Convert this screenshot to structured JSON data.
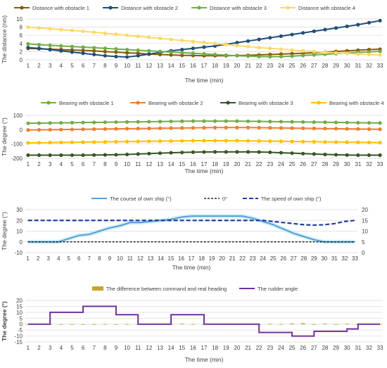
{
  "chart_data": [
    {
      "type": "line",
      "x": [
        1,
        2,
        3,
        4,
        5,
        6,
        7,
        8,
        9,
        10,
        11,
        12,
        13,
        14,
        15,
        16,
        17,
        18,
        19,
        20,
        21,
        22,
        23,
        24,
        25,
        26,
        27,
        28,
        29,
        30,
        31,
        32,
        33
      ],
      "xlabel": "The time (min)",
      "ylabel": "The distance (nm)",
      "ylim": [
        0,
        10
      ],
      "yticks": [
        0,
        2,
        4,
        6,
        8,
        10
      ],
      "grid": true,
      "legend": "top",
      "series": [
        {
          "name": "Distance with obstacle 1",
          "color": "#8B5A00",
          "values": [
            2.8,
            2.7,
            2.6,
            2.5,
            2.4,
            2.3,
            2.2,
            2.0,
            1.9,
            1.7,
            1.6,
            1.4,
            1.3,
            1.2,
            1.1,
            1.05,
            1.0,
            1.0,
            1.0,
            1.05,
            1.1,
            1.2,
            1.3,
            1.4,
            1.5,
            1.6,
            1.75,
            1.9,
            2.05,
            2.2,
            2.35,
            2.5,
            2.6
          ]
        },
        {
          "name": "Distance with obstacle 2",
          "color": "#1F4E79",
          "values": [
            3.0,
            2.8,
            2.5,
            2.2,
            1.9,
            1.6,
            1.3,
            1.0,
            0.8,
            0.7,
            1.0,
            1.4,
            1.8,
            2.2,
            2.5,
            2.8,
            3.1,
            3.4,
            3.8,
            4.2,
            4.6,
            5.0,
            5.4,
            5.8,
            6.2,
            6.6,
            7.0,
            7.4,
            7.8,
            8.2,
            8.6,
            9.1,
            9.6
          ]
        },
        {
          "name": "Distance with obstacle 3",
          "color": "#70AD47",
          "values": [
            3.9,
            3.7,
            3.55,
            3.4,
            3.25,
            3.1,
            2.95,
            2.8,
            2.65,
            2.5,
            2.35,
            2.2,
            2.05,
            1.9,
            1.75,
            1.6,
            1.45,
            1.3,
            1.15,
            1.0,
            0.9,
            0.8,
            0.75,
            0.8,
            0.9,
            1.05,
            1.2,
            1.35,
            1.5,
            1.65,
            1.8,
            1.95,
            2.1
          ]
        },
        {
          "name": "Distance with obstacle 4",
          "color": "#FFD966",
          "values": [
            8.0,
            7.8,
            7.6,
            7.4,
            7.2,
            7.0,
            6.75,
            6.5,
            6.25,
            6.0,
            5.75,
            5.5,
            5.25,
            5.0,
            4.75,
            4.5,
            4.25,
            4.0,
            3.75,
            3.5,
            3.25,
            3.0,
            2.8,
            2.6,
            2.4,
            2.2,
            2.0,
            1.85,
            1.7,
            1.55,
            1.4,
            1.3,
            1.2
          ]
        }
      ]
    },
    {
      "type": "line",
      "x": [
        1,
        2,
        3,
        4,
        5,
        6,
        7,
        8,
        9,
        10,
        11,
        12,
        13,
        14,
        15,
        16,
        17,
        18,
        19,
        20,
        21,
        22,
        23,
        24,
        25,
        26,
        27,
        28,
        29,
        30,
        31,
        32,
        33
      ],
      "xlabel": "The time (min)",
      "ylabel": "The degree (°)",
      "ylim": [
        -200,
        100
      ],
      "yticks": [
        -200,
        -100,
        0,
        100
      ],
      "grid": true,
      "legend": "top",
      "series": [
        {
          "name": "Bearing with obstacle 1",
          "color": "#70AD47",
          "values": [
            45,
            46,
            47,
            48,
            49,
            50,
            51,
            52,
            53,
            54,
            55,
            56,
            57,
            58,
            59,
            60,
            60,
            60,
            60,
            60,
            59,
            58,
            57,
            56,
            55,
            54,
            53,
            52,
            51,
            50,
            49,
            48,
            47
          ]
        },
        {
          "name": "Bearing with obstacle 2",
          "color": "#ED7D31",
          "values": [
            -2,
            -1,
            0,
            1,
            2,
            3,
            4,
            5,
            6,
            7,
            8,
            9,
            10,
            11,
            12,
            13,
            14,
            15,
            15,
            15,
            15,
            14,
            13,
            12,
            11,
            10,
            9,
            8,
            7,
            6,
            5,
            4,
            3
          ]
        },
        {
          "name": "Bearing with obstacle 3",
          "color": "#375623",
          "values": [
            -178,
            -178,
            -178,
            -178,
            -178,
            -178,
            -177,
            -176,
            -175,
            -173,
            -170,
            -167,
            -164,
            -161,
            -159,
            -157,
            -156,
            -155,
            -155,
            -155,
            -155,
            -156,
            -158,
            -161,
            -164,
            -167,
            -170,
            -173,
            -175,
            -177,
            -178,
            -178,
            -178
          ]
        },
        {
          "name": "Bearing with obstacle 4",
          "color": "#FFC000",
          "values": [
            -92,
            -91,
            -90,
            -89,
            -88,
            -87,
            -86,
            -85,
            -84,
            -83,
            -82,
            -81,
            -80,
            -79,
            -78,
            -77,
            -77,
            -77,
            -77,
            -77,
            -78,
            -79,
            -80,
            -81,
            -82,
            -83,
            -84,
            -85,
            -86,
            -87,
            -88,
            -89,
            -90
          ]
        }
      ]
    },
    {
      "type": "line",
      "x": [
        1,
        2,
        3,
        4,
        5,
        6,
        7,
        8,
        9,
        10,
        11,
        12,
        13,
        14,
        15,
        16,
        17,
        18,
        19,
        20,
        21,
        22,
        23,
        24,
        25,
        26,
        27,
        28,
        29,
        30,
        31,
        32,
        33
      ],
      "xlabel": "The time (min)",
      "ylabel": "The degree (°)",
      "ylim": [
        -10,
        30
      ],
      "yticks": [
        -10,
        0,
        10,
        20,
        30
      ],
      "y2lim": [
        0,
        20
      ],
      "y2ticks": [
        0,
        5,
        10,
        15,
        20
      ],
      "grid": true,
      "legend": "top",
      "series": [
        {
          "name": "The course of own ship (°)",
          "color": "#5B9BD5",
          "axis": "left",
          "values": [
            0,
            0,
            0,
            0,
            3,
            6,
            7,
            10,
            13,
            15,
            18,
            18,
            19,
            20,
            21,
            23,
            24,
            24,
            24,
            24,
            24,
            24,
            22,
            19,
            16,
            12,
            8,
            5,
            2,
            0,
            0,
            0,
            0
          ]
        },
        {
          "name": "0°",
          "color": "#000000",
          "axis": "left",
          "dash": "dotted",
          "values": [
            0,
            0,
            0,
            0,
            0,
            0,
            0,
            0,
            0,
            0,
            0,
            0,
            0,
            0,
            0,
            0,
            0,
            0,
            0,
            0,
            0,
            0,
            0,
            0,
            0,
            0,
            0,
            0,
            0,
            0,
            0,
            0,
            0
          ]
        },
        {
          "name": "The speed of own ship (°)",
          "color": "#1F3FA0",
          "axis": "right",
          "dash": "dashed",
          "values": [
            15,
            15,
            15,
            15,
            15,
            15,
            15,
            15,
            15,
            15,
            15,
            15,
            15,
            15,
            15,
            15,
            15,
            15,
            15,
            15,
            15,
            15,
            15,
            15,
            14.5,
            14,
            13.5,
            13,
            12.8,
            13,
            13.5,
            14.5,
            15
          ]
        }
      ]
    },
    {
      "type": "line",
      "x": [
        1,
        2,
        3,
        4,
        5,
        6,
        7,
        8,
        9,
        10,
        11,
        12,
        13,
        14,
        15,
        16,
        17,
        18,
        19,
        20,
        21,
        22,
        23,
        24,
        25,
        26,
        27,
        28,
        29,
        30,
        31,
        32,
        33
      ],
      "xlabel": "The time (min)",
      "ylabel": "The degree (°)",
      "ylim": [
        -15,
        20
      ],
      "yticks": [
        -15,
        -10,
        -5,
        0,
        5,
        10,
        15,
        20
      ],
      "grid": true,
      "legend": "top",
      "series": [
        {
          "name": "The difference between command and real heading",
          "color": "#C9A227",
          "type": "bar",
          "values": [
            0,
            0,
            0,
            0,
            -0.5,
            0,
            0,
            -0.3,
            0,
            0,
            0,
            0,
            0,
            0,
            0.5,
            0,
            0,
            0,
            0,
            0.5,
            0,
            0,
            0.4,
            0,
            0.6,
            0.8,
            0,
            0.5,
            0,
            0.3,
            0,
            0,
            0
          ]
        },
        {
          "name": "The rudder angle",
          "color": "#7030A0",
          "type": "step",
          "values": [
            0,
            0,
            10,
            10,
            10,
            15,
            15,
            15,
            8,
            8,
            0,
            0,
            0,
            8,
            8,
            8,
            0,
            0,
            0,
            0,
            0,
            -7,
            -7,
            -7,
            -10,
            -10,
            -6,
            -6,
            -6,
            -4,
            0,
            0,
            0
          ]
        }
      ]
    }
  ]
}
